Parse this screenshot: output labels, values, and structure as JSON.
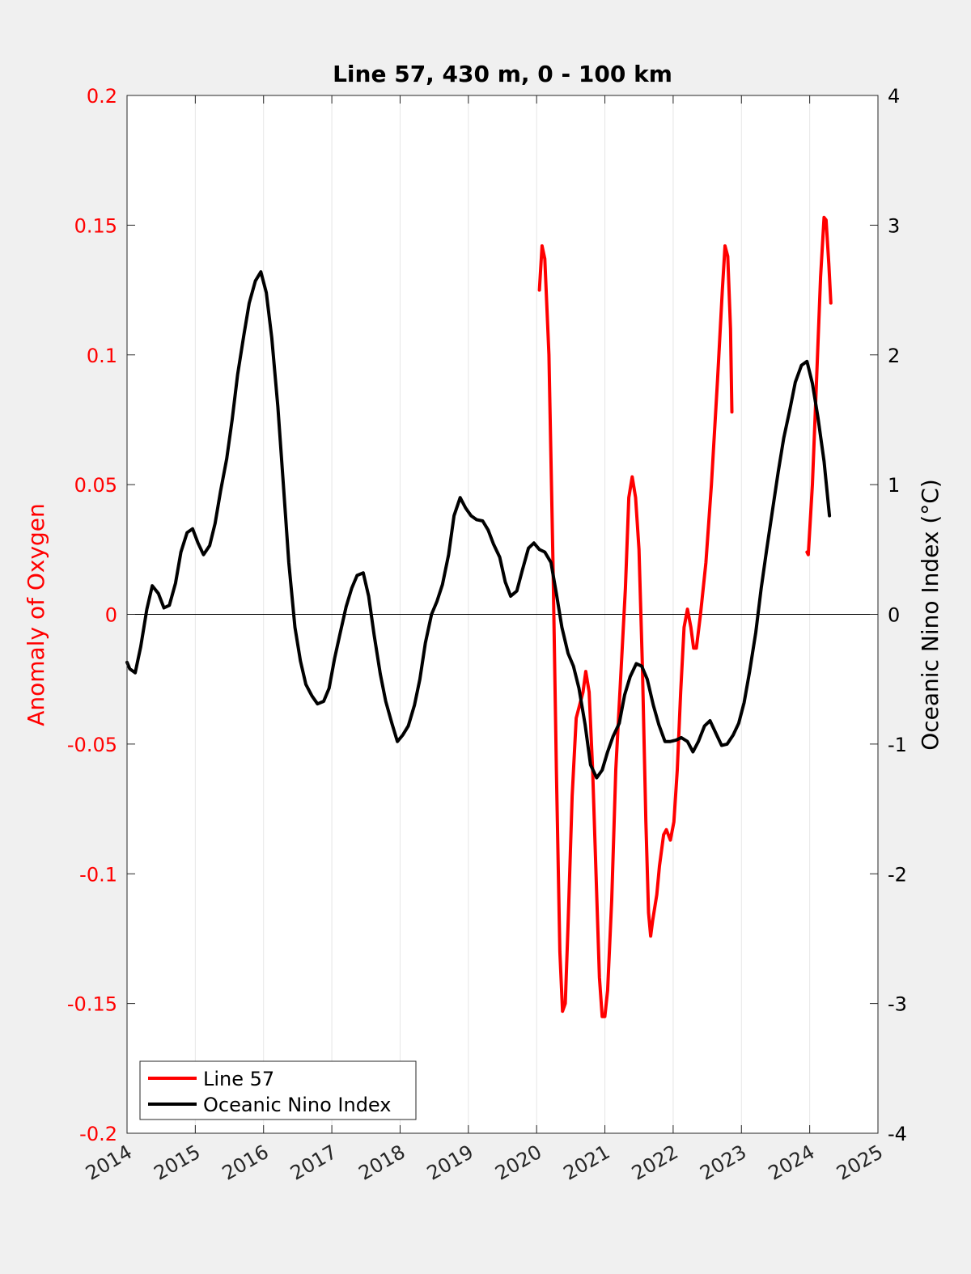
{
  "chart_data": {
    "type": "line",
    "title": "Line 57, 430 m, 0 - 100 km",
    "ylabel_left": "Anomaly of Oxygen",
    "ylabel_right": "Oceanic Nino Index (°C)",
    "xlim": [
      2014,
      2025
    ],
    "ylim_left": [
      -0.2,
      0.2
    ],
    "ylim_right": [
      -4,
      4
    ],
    "x_ticks": [
      2014,
      2015,
      2016,
      2017,
      2018,
      2019,
      2020,
      2021,
      2022,
      2023,
      2024,
      2025
    ],
    "y_ticks_left": [
      "0.2",
      "0.15",
      "0.1",
      "0.05",
      "0",
      "-0.05",
      "-0.1",
      "-0.15",
      "-0.2"
    ],
    "y_ticks_right": [
      "4",
      "3",
      "2",
      "1",
      "0",
      "-1",
      "-2",
      "-3",
      "-4"
    ],
    "grid": "vertical",
    "zero_line": true,
    "legend_position": "bottom-left",
    "colors": {
      "line57": "#ff0000",
      "oni": "#000000",
      "left_axis": "#ff0000",
      "right_axis": "#000000"
    },
    "series": [
      {
        "name": "Line 57",
        "axis": "left",
        "color": "#ff0000",
        "segments": [
          [
            [
              2020.04,
              0.125
            ],
            [
              2020.08,
              0.142
            ],
            [
              2020.12,
              0.137
            ],
            [
              2020.18,
              0.1
            ],
            [
              2020.24,
              0.02
            ],
            [
              2020.29,
              -0.06
            ],
            [
              2020.34,
              -0.13
            ],
            [
              2020.38,
              -0.153
            ],
            [
              2020.42,
              -0.15
            ],
            [
              2020.46,
              -0.12
            ],
            [
              2020.52,
              -0.07
            ],
            [
              2020.58,
              -0.04
            ],
            [
              2020.63,
              -0.035
            ],
            [
              2020.68,
              -0.03
            ],
            [
              2020.72,
              -0.022
            ],
            [
              2020.77,
              -0.03
            ],
            [
              2020.82,
              -0.06
            ],
            [
              2020.87,
              -0.1
            ],
            [
              2020.92,
              -0.14
            ],
            [
              2020.96,
              -0.155
            ],
            [
              2021.0,
              -0.155
            ],
            [
              2021.04,
              -0.145
            ],
            [
              2021.1,
              -0.11
            ],
            [
              2021.16,
              -0.06
            ],
            [
              2021.24,
              -0.02
            ],
            [
              2021.3,
              0.01
            ],
            [
              2021.35,
              0.045
            ],
            [
              2021.4,
              0.053
            ],
            [
              2021.45,
              0.045
            ],
            [
              2021.5,
              0.025
            ],
            [
              2021.55,
              -0.02
            ],
            [
              2021.6,
              -0.08
            ],
            [
              2021.64,
              -0.115
            ],
            [
              2021.67,
              -0.124
            ],
            [
              2021.7,
              -0.118
            ],
            [
              2021.76,
              -0.108
            ],
            [
              2021.8,
              -0.097
            ],
            [
              2021.86,
              -0.085
            ],
            [
              2021.9,
              -0.083
            ],
            [
              2021.96,
              -0.087
            ],
            [
              2022.01,
              -0.08
            ],
            [
              2022.06,
              -0.06
            ],
            [
              2022.11,
              -0.03
            ],
            [
              2022.16,
              -0.005
            ],
            [
              2022.21,
              0.002
            ],
            [
              2022.26,
              -0.005
            ],
            [
              2022.3,
              -0.013
            ],
            [
              2022.34,
              -0.013
            ],
            [
              2022.4,
              0.0
            ],
            [
              2022.48,
              0.02
            ],
            [
              2022.56,
              0.05
            ],
            [
              2022.65,
              0.09
            ],
            [
              2022.72,
              0.125
            ],
            [
              2022.76,
              0.142
            ],
            [
              2022.8,
              0.138
            ],
            [
              2022.84,
              0.11
            ],
            [
              2022.86,
              0.078
            ]
          ],
          [
            [
              2023.96,
              0.024
            ],
            [
              2023.98,
              0.023
            ],
            [
              2024.04,
              0.05
            ],
            [
              2024.1,
              0.09
            ],
            [
              2024.16,
              0.13
            ],
            [
              2024.21,
              0.153
            ],
            [
              2024.24,
              0.152
            ],
            [
              2024.28,
              0.135
            ],
            [
              2024.31,
              0.12
            ]
          ]
        ]
      },
      {
        "name": "Oceanic Nino Index",
        "axis": "right",
        "color": "#000000",
        "segments": [
          [
            [
              2014.0,
              -0.37
            ],
            [
              2014.04,
              -0.42
            ],
            [
              2014.12,
              -0.45
            ],
            [
              2014.2,
              -0.25
            ],
            [
              2014.29,
              0.04
            ],
            [
              2014.37,
              0.22
            ],
            [
              2014.46,
              0.16
            ],
            [
              2014.54,
              0.05
            ],
            [
              2014.62,
              0.07
            ],
            [
              2014.71,
              0.24
            ],
            [
              2014.79,
              0.48
            ],
            [
              2014.88,
              0.63
            ],
            [
              2014.96,
              0.66
            ],
            [
              2015.04,
              0.55
            ],
            [
              2015.12,
              0.46
            ],
            [
              2015.21,
              0.53
            ],
            [
              2015.29,
              0.7
            ],
            [
              2015.37,
              0.95
            ],
            [
              2015.46,
              1.2
            ],
            [
              2015.54,
              1.5
            ],
            [
              2015.62,
              1.85
            ],
            [
              2015.71,
              2.15
            ],
            [
              2015.79,
              2.4
            ],
            [
              2015.88,
              2.57
            ],
            [
              2015.96,
              2.64
            ],
            [
              2016.04,
              2.48
            ],
            [
              2016.12,
              2.13
            ],
            [
              2016.21,
              1.6
            ],
            [
              2016.29,
              1.0
            ],
            [
              2016.37,
              0.4
            ],
            [
              2016.46,
              -0.1
            ],
            [
              2016.54,
              -0.36
            ],
            [
              2016.62,
              -0.54
            ],
            [
              2016.71,
              -0.63
            ],
            [
              2016.79,
              -0.69
            ],
            [
              2016.88,
              -0.67
            ],
            [
              2016.96,
              -0.57
            ],
            [
              2017.04,
              -0.34
            ],
            [
              2017.12,
              -0.15
            ],
            [
              2017.21,
              0.06
            ],
            [
              2017.29,
              0.2
            ],
            [
              2017.37,
              0.3
            ],
            [
              2017.46,
              0.32
            ],
            [
              2017.54,
              0.14
            ],
            [
              2017.62,
              -0.16
            ],
            [
              2017.71,
              -0.46
            ],
            [
              2017.79,
              -0.67
            ],
            [
              2017.88,
              -0.84
            ],
            [
              2017.96,
              -0.98
            ],
            [
              2018.04,
              -0.93
            ],
            [
              2018.12,
              -0.86
            ],
            [
              2018.21,
              -0.7
            ],
            [
              2018.29,
              -0.5
            ],
            [
              2018.37,
              -0.22
            ],
            [
              2018.46,
              0.0
            ],
            [
              2018.54,
              0.1
            ],
            [
              2018.62,
              0.23
            ],
            [
              2018.71,
              0.46
            ],
            [
              2018.79,
              0.76
            ],
            [
              2018.88,
              0.9
            ],
            [
              2018.96,
              0.82
            ],
            [
              2019.04,
              0.76
            ],
            [
              2019.12,
              0.73
            ],
            [
              2019.21,
              0.72
            ],
            [
              2019.29,
              0.65
            ],
            [
              2019.37,
              0.54
            ],
            [
              2019.46,
              0.44
            ],
            [
              2019.54,
              0.25
            ],
            [
              2019.62,
              0.14
            ],
            [
              2019.71,
              0.18
            ],
            [
              2019.79,
              0.34
            ],
            [
              2019.88,
              0.51
            ],
            [
              2019.96,
              0.55
            ],
            [
              2020.04,
              0.5
            ],
            [
              2020.12,
              0.48
            ],
            [
              2020.21,
              0.4
            ],
            [
              2020.29,
              0.16
            ],
            [
              2020.37,
              -0.1
            ],
            [
              2020.46,
              -0.3
            ],
            [
              2020.54,
              -0.4
            ],
            [
              2020.62,
              -0.57
            ],
            [
              2020.71,
              -0.85
            ],
            [
              2020.79,
              -1.16
            ],
            [
              2020.88,
              -1.26
            ],
            [
              2020.96,
              -1.2
            ],
            [
              2021.04,
              -1.06
            ],
            [
              2021.12,
              -0.94
            ],
            [
              2021.21,
              -0.84
            ],
            [
              2021.29,
              -0.62
            ],
            [
              2021.37,
              -0.48
            ],
            [
              2021.46,
              -0.38
            ],
            [
              2021.54,
              -0.4
            ],
            [
              2021.62,
              -0.5
            ],
            [
              2021.71,
              -0.7
            ],
            [
              2021.79,
              -0.85
            ],
            [
              2021.88,
              -0.98
            ],
            [
              2021.96,
              -0.98
            ],
            [
              2022.04,
              -0.97
            ],
            [
              2022.12,
              -0.95
            ],
            [
              2022.21,
              -0.98
            ],
            [
              2022.29,
              -1.06
            ],
            [
              2022.37,
              -0.98
            ],
            [
              2022.46,
              -0.86
            ],
            [
              2022.54,
              -0.82
            ],
            [
              2022.62,
              -0.91
            ],
            [
              2022.71,
              -1.01
            ],
            [
              2022.79,
              -1.0
            ],
            [
              2022.88,
              -0.93
            ],
            [
              2022.96,
              -0.84
            ],
            [
              2023.04,
              -0.68
            ],
            [
              2023.12,
              -0.44
            ],
            [
              2023.21,
              -0.14
            ],
            [
              2023.29,
              0.2
            ],
            [
              2023.37,
              0.5
            ],
            [
              2023.46,
              0.82
            ],
            [
              2023.54,
              1.1
            ],
            [
              2023.62,
              1.36
            ],
            [
              2023.71,
              1.58
            ],
            [
              2023.79,
              1.79
            ],
            [
              2023.88,
              1.92
            ],
            [
              2023.96,
              1.95
            ],
            [
              2024.04,
              1.78
            ],
            [
              2024.12,
              1.52
            ],
            [
              2024.21,
              1.18
            ],
            [
              2024.29,
              0.76
            ]
          ]
        ]
      }
    ]
  }
}
